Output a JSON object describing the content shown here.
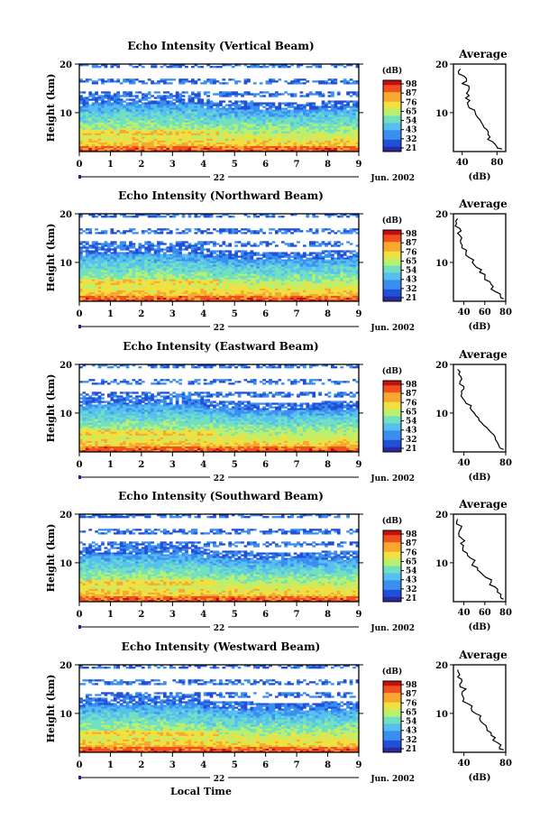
{
  "chart_data": [
    {
      "type": "heatmap",
      "title": "Echo Intensity (Vertical Beam)",
      "ylabel": "Height (km)",
      "ylim": [
        2,
        20
      ],
      "yticks": [
        "20",
        "10"
      ],
      "xlim": [
        0,
        9
      ],
      "xticks": [
        "0",
        "1",
        "2",
        "3",
        "4",
        "5",
        "6",
        "7",
        "8",
        "9"
      ],
      "date_label": "22",
      "date_right": "Jun. 2002",
      "colorbar": {
        "unit": "(dB)",
        "ticks": [
          "98",
          "87",
          "76",
          "65",
          "54",
          "43",
          "32",
          "21"
        ]
      },
      "profile": {
        "title": "Average",
        "xlabel": "(dB)",
        "xticks": [
          "40",
          "80"
        ],
        "xlim": [
          30,
          90
        ],
        "ylim": [
          2,
          20
        ],
        "y": [
          19,
          18,
          17,
          16,
          15,
          14,
          13,
          12,
          11,
          10,
          9,
          8,
          7,
          6,
          5,
          4,
          3,
          2.5
        ],
        "x": [
          38,
          36,
          45,
          40,
          48,
          45,
          44,
          46,
          48,
          55,
          58,
          62,
          65,
          70,
          72,
          75,
          80,
          86
        ]
      }
    },
    {
      "type": "heatmap",
      "title": "Echo Intensity (Northward Beam)",
      "ylabel": "Height (km)",
      "ylim": [
        2,
        20
      ],
      "yticks": [
        "20",
        "10"
      ],
      "xlim": [
        0,
        9
      ],
      "xticks": [
        "0",
        "1",
        "2",
        "3",
        "4",
        "5",
        "6",
        "7",
        "8",
        "9"
      ],
      "date_label": "22",
      "date_right": "Jun. 2002",
      "colorbar": {
        "unit": "(dB)",
        "ticks": [
          "98",
          "87",
          "76",
          "65",
          "54",
          "43",
          "32",
          "21"
        ]
      },
      "profile": {
        "title": "Average",
        "xlabel": "(dB)",
        "xticks": [
          "40",
          "60",
          "80"
        ],
        "xlim": [
          30,
          80
        ],
        "ylim": [
          2,
          20
        ],
        "y": [
          19,
          18,
          17,
          16,
          15,
          14,
          13,
          12,
          11,
          10,
          9,
          8,
          7,
          6,
          5,
          4,
          3,
          2.5
        ],
        "x": [
          34,
          33,
          36,
          34,
          38,
          37,
          38,
          42,
          45,
          48,
          52,
          55,
          60,
          65,
          68,
          70,
          75,
          78
        ]
      }
    },
    {
      "type": "heatmap",
      "title": "Echo Intensity (Eastward Beam)",
      "ylabel": "Height (km)",
      "ylim": [
        2,
        20
      ],
      "yticks": [
        "20",
        "10"
      ],
      "xlim": [
        0,
        9
      ],
      "xticks": [
        "0",
        "1",
        "2",
        "3",
        "4",
        "5",
        "6",
        "7",
        "8",
        "9"
      ],
      "date_label": "22",
      "date_right": "Jun. 2002",
      "colorbar": {
        "unit": "(dB)",
        "ticks": [
          "98",
          "87",
          "76",
          "65",
          "54",
          "43",
          "32",
          "21"
        ]
      },
      "profile": {
        "title": "Average",
        "xlabel": "(dB)",
        "xticks": [
          "40",
          "80"
        ],
        "xlim": [
          30,
          80
        ],
        "ylim": [
          2,
          20
        ],
        "y": [
          19,
          18,
          17,
          16,
          15,
          14,
          13,
          12,
          11,
          10,
          9,
          8,
          7,
          6,
          5,
          4,
          3,
          2.5
        ],
        "x": [
          34,
          35,
          38,
          36,
          40,
          38,
          39,
          42,
          46,
          50,
          54,
          57,
          62,
          66,
          70,
          72,
          74,
          78
        ]
      }
    },
    {
      "type": "heatmap",
      "title": "Echo Intensity (Southward Beam)",
      "ylabel": "Height (km)",
      "ylim": [
        2,
        20
      ],
      "yticks": [
        "20",
        "10"
      ],
      "xlim": [
        0,
        9
      ],
      "xticks": [
        "0",
        "1",
        "2",
        "3",
        "4",
        "5",
        "6",
        "7",
        "8",
        "9"
      ],
      "date_label": "22",
      "date_right": "Jun. 2002",
      "colorbar": {
        "unit": "(dB)",
        "ticks": [
          "98",
          "87",
          "76",
          "65",
          "54",
          "43",
          "32",
          "21"
        ]
      },
      "profile": {
        "title": "Average",
        "xlabel": "(dB)",
        "xticks": [
          "40",
          "60",
          "80"
        ],
        "xlim": [
          30,
          80
        ],
        "ylim": [
          2,
          20
        ],
        "y": [
          19,
          18,
          17,
          16,
          15,
          14,
          13,
          12,
          11,
          10,
          9,
          8,
          7,
          6,
          5,
          4,
          3,
          2.5
        ],
        "x": [
          34,
          33,
          37,
          35,
          38,
          37,
          39,
          43,
          46,
          49,
          53,
          56,
          61,
          66,
          70,
          72,
          75,
          78
        ]
      }
    },
    {
      "type": "heatmap",
      "title": "Echo Intensity (Westward Beam)",
      "ylabel": "Height (km)",
      "ylim": [
        2,
        20
      ],
      "yticks": [
        "20",
        "10"
      ],
      "xlim": [
        0,
        9
      ],
      "xticks": [
        "0",
        "1",
        "2",
        "3",
        "4",
        "5",
        "6",
        "7",
        "8",
        "9"
      ],
      "date_label": "22",
      "date_right": "Jun. 2002",
      "xlabel": "Local Time",
      "colorbar": {
        "unit": "(dB)",
        "ticks": [
          "98",
          "87",
          "76",
          "65",
          "54",
          "43",
          "32",
          "21"
        ]
      },
      "profile": {
        "title": "Average",
        "xlabel": "(dB)",
        "xticks": [
          "40",
          "80"
        ],
        "xlim": [
          30,
          80
        ],
        "ylim": [
          2,
          20
        ],
        "y": [
          19,
          18,
          17,
          16,
          15,
          14,
          13,
          12,
          11,
          10,
          9,
          8,
          7,
          6,
          5,
          4,
          3,
          2.5
        ],
        "x": [
          34,
          36,
          38,
          36,
          42,
          38,
          40,
          44,
          47,
          51,
          55,
          58,
          62,
          66,
          70,
          72,
          74,
          78
        ]
      }
    }
  ],
  "colors": {
    "scale": [
      "#2a2aa0",
      "#2050d8",
      "#3a8ef0",
      "#55c0f0",
      "#70e0c0",
      "#b8f070",
      "#f0e040",
      "#f8a830",
      "#f05020",
      "#c01010"
    ]
  }
}
